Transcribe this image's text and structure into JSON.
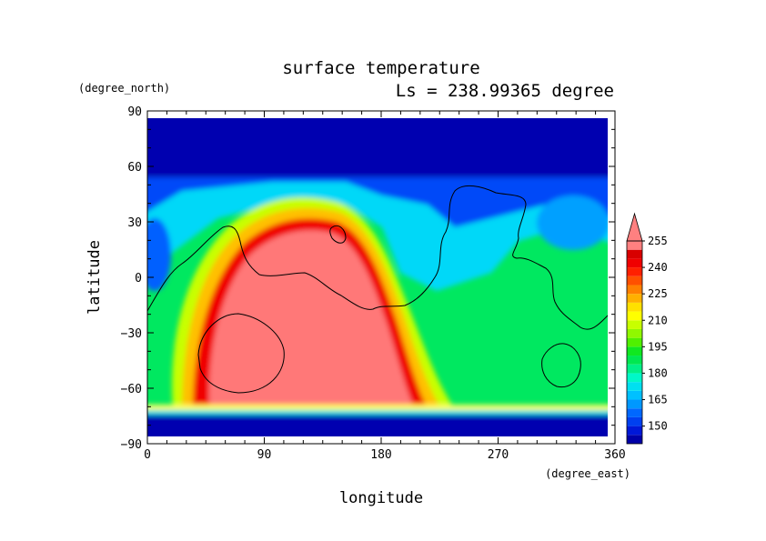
{
  "chart_data": {
    "type": "heatmap",
    "title": "surface temperature",
    "subtitle": "Ls = 238.99365 degree",
    "xlabel": "longitude",
    "ylabel": "latitude",
    "x_unit": "(degree_east)",
    "y_unit": "(degree_north)",
    "xlim": [
      0,
      360
    ],
    "ylim": [
      -90,
      90
    ],
    "x_ticks": [
      "0",
      "90",
      "180",
      "270",
      "360"
    ],
    "y_ticks": [
      "90",
      "60",
      "30",
      "0",
      "−30",
      "−60",
      "−90"
    ],
    "colorbar": {
      "levels": [
        140,
        145,
        150,
        155,
        160,
        165,
        170,
        175,
        180,
        185,
        190,
        195,
        200,
        205,
        210,
        215,
        220,
        225,
        230,
        235,
        240,
        245,
        250,
        255
      ],
      "labels": [
        "150",
        "165",
        "180",
        "195",
        "210",
        "225",
        "240",
        "255"
      ],
      "colors": [
        "#0000a8",
        "#0018d8",
        "#0040f0",
        "#0068ff",
        "#0098ff",
        "#00c0ff",
        "#00e0f0",
        "#00f8c8",
        "#00f088",
        "#00e850",
        "#10e820",
        "#50f000",
        "#90f800",
        "#c8ff00",
        "#ffff00",
        "#ffe000",
        "#ffb000",
        "#ff8000",
        "#ff5000",
        "#ff2000",
        "#f00000",
        "#d80000",
        "#ff8080"
      ],
      "extend": "max"
    },
    "notes": "Martian surface temperature (K) with topography contour overlay; warmest region (>255) over longitude ~40-200 E, latitude -70 to 35; cold polar caps below 150 at both poles."
  }
}
